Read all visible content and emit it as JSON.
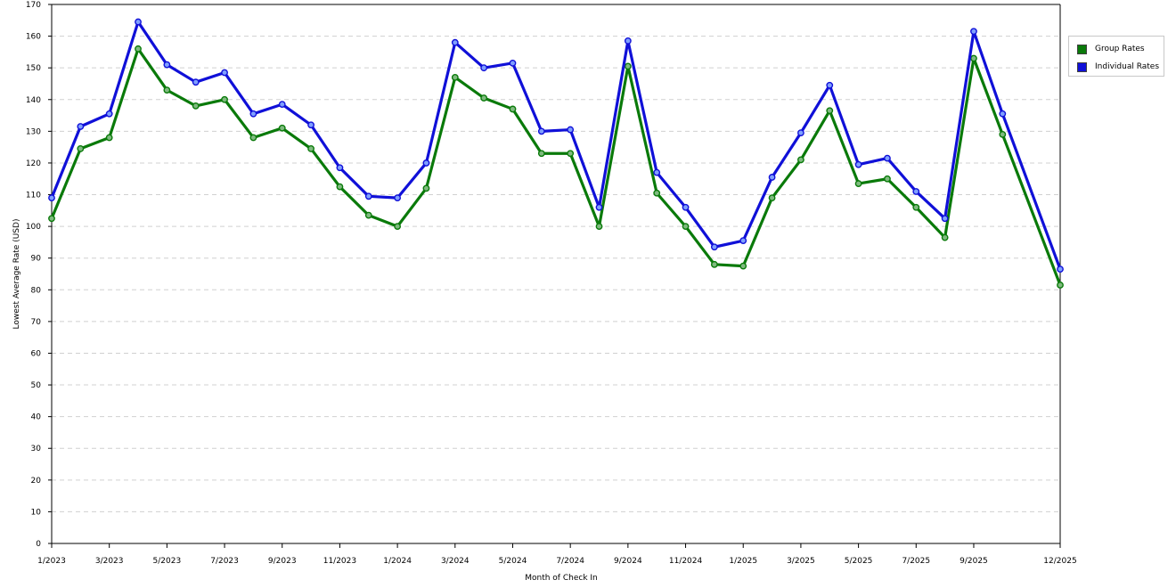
{
  "colors": {
    "group": "#0a7a0a",
    "individual": "#1010d8",
    "group_marker": "#7fba7f",
    "individual_marker": "#7f9fff",
    "grid": "#d0d0d0"
  },
  "chart_data": {
    "type": "line",
    "title": "",
    "xlabel": "Month of Check In",
    "ylabel": "Lowest Average Rate (USD)",
    "ylim": [
      0,
      170
    ],
    "yticks": [
      0,
      10,
      20,
      30,
      40,
      50,
      60,
      70,
      80,
      90,
      100,
      110,
      120,
      130,
      140,
      150,
      160,
      170
    ],
    "grid": true,
    "legend_position": "top-right",
    "x": [
      "1/2023",
      "2/2023",
      "3/2023",
      "4/2023",
      "5/2023",
      "6/2023",
      "7/2023",
      "8/2023",
      "9/2023",
      "10/2023",
      "11/2023",
      "12/2023",
      "1/2024",
      "2/2024",
      "3/2024",
      "4/2024",
      "5/2024",
      "6/2024",
      "7/2024",
      "8/2024",
      "9/2024",
      "10/2024",
      "11/2024",
      "12/2024",
      "1/2025",
      "2/2025",
      "3/2025",
      "4/2025",
      "5/2025",
      "6/2025",
      "7/2025",
      "8/2025",
      "9/2025",
      "10/2025",
      "11/2025",
      "12/2025"
    ],
    "xtick_labels": [
      "1/2023",
      "3/2023",
      "5/2023",
      "7/2023",
      "9/2023",
      "11/2023",
      "1/2024",
      "3/2024",
      "5/2024",
      "7/2024",
      "9/2024",
      "11/2024",
      "1/2025",
      "3/2025",
      "5/2025",
      "7/2025",
      "9/2025",
      "12/2025"
    ],
    "series": [
      {
        "name": "Group Rates",
        "color": "#0a7a0a",
        "values": [
          102.5,
          124.5,
          128,
          156,
          143,
          138,
          140,
          128,
          131,
          124.5,
          112.5,
          103.5,
          100,
          112,
          147,
          140.5,
          137,
          123,
          123,
          100,
          150.5,
          110.5,
          100,
          88,
          87.5,
          109,
          121,
          136.5,
          113.5,
          115,
          106,
          96.5,
          153,
          129,
          null,
          81.5
        ]
      },
      {
        "name": "Individual Rates",
        "color": "#1010d8",
        "values": [
          109,
          131.5,
          135.5,
          164.5,
          151,
          145.5,
          148.5,
          135.5,
          138.5,
          132,
          118.5,
          109.5,
          109,
          120,
          158,
          150,
          151.5,
          130,
          130.5,
          106,
          158.5,
          117,
          106,
          93.5,
          95.5,
          115.5,
          129.5,
          144.5,
          119.5,
          121.5,
          111,
          102.5,
          161.5,
          135.5,
          null,
          86.5
        ]
      }
    ]
  }
}
